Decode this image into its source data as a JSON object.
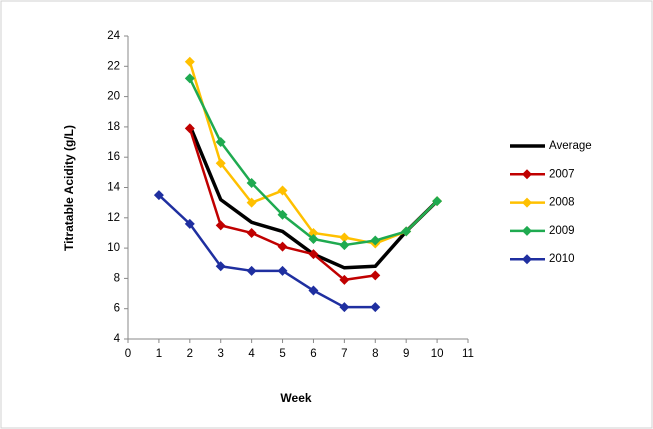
{
  "chart_data": {
    "type": "line",
    "x_label": "Week",
    "y_label": "Titratable Acidity (g/L)",
    "x": [
      1,
      2,
      3,
      4,
      5,
      6,
      7,
      8,
      9,
      10
    ],
    "series": [
      {
        "name": "Average",
        "color": "#000000",
        "marker": false,
        "values": [
          null,
          18.1,
          13.2,
          11.7,
          11.1,
          9.6,
          8.7,
          8.8,
          11.1,
          13.1
        ]
      },
      {
        "name": "2007",
        "color": "#c00000",
        "marker": true,
        "values": [
          null,
          17.9,
          11.5,
          11.0,
          10.1,
          9.6,
          7.9,
          8.2,
          null,
          null
        ]
      },
      {
        "name": "2008",
        "color": "#ffc000",
        "marker": true,
        "values": [
          null,
          22.3,
          15.6,
          13.0,
          13.8,
          11.0,
          10.7,
          10.3,
          11.1,
          13.1
        ]
      },
      {
        "name": "2009",
        "color": "#1faa50",
        "marker": true,
        "values": [
          null,
          21.2,
          17.0,
          14.3,
          12.2,
          10.6,
          10.2,
          10.5,
          11.1,
          13.1
        ]
      },
      {
        "name": "2010",
        "color": "#1f2fa0",
        "marker": true,
        "values": [
          13.5,
          11.6,
          8.8,
          8.5,
          8.5,
          7.2,
          6.1,
          6.1,
          null,
          null
        ]
      }
    ],
    "xlim": [
      0,
      11
    ],
    "xticks": [
      0,
      1,
      2,
      3,
      4,
      5,
      6,
      7,
      8,
      9,
      10,
      11
    ],
    "ylim": [
      4,
      24
    ],
    "yticks": [
      4,
      6,
      8,
      10,
      12,
      14,
      16,
      18,
      20,
      22,
      24
    ],
    "grid": false,
    "legend": "right"
  }
}
